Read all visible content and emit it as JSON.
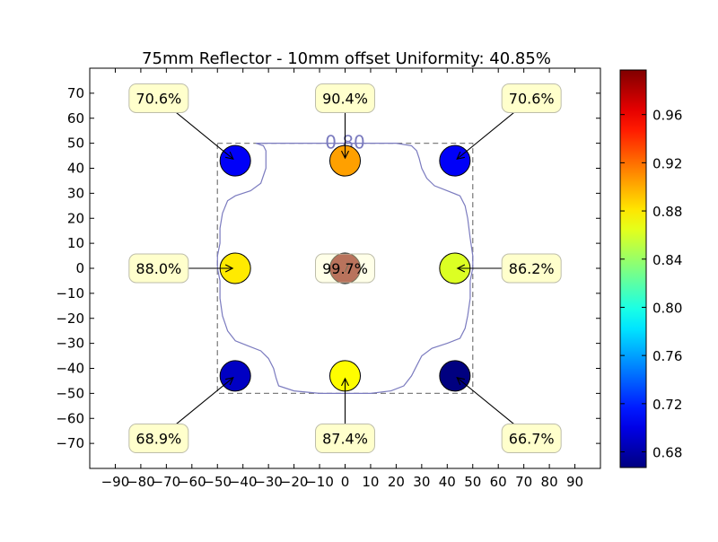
{
  "chart_data": {
    "type": "scatter",
    "title": "75mm Reflector - 10mm offset Uniformity: 40.85%",
    "xlabel": "",
    "ylabel": "",
    "xlim": [
      -100,
      100
    ],
    "ylim": [
      -80,
      80
    ],
    "xticks": [
      -90,
      -80,
      -70,
      -60,
      -50,
      -40,
      -30,
      -20,
      -10,
      0,
      10,
      20,
      30,
      40,
      50,
      60,
      70,
      80,
      90
    ],
    "yticks": [
      -70,
      -60,
      -50,
      -40,
      -30,
      -20,
      -10,
      0,
      10,
      20,
      30,
      40,
      50,
      60,
      70
    ],
    "grid": false,
    "points": [
      {
        "x": -43,
        "y": 43,
        "value": 0.706,
        "label": "70.6%",
        "annotation_offset": [
          -30,
          25
        ]
      },
      {
        "x": 0,
        "y": 43,
        "value": 0.904,
        "label": "90.4%",
        "annotation_offset": [
          0,
          25
        ]
      },
      {
        "x": 43,
        "y": 43,
        "value": 0.706,
        "label": "70.6%",
        "annotation_offset": [
          30,
          25
        ]
      },
      {
        "x": -43,
        "y": 0,
        "value": 0.88,
        "label": "88.0%",
        "annotation_offset": [
          -30,
          0
        ]
      },
      {
        "x": 0,
        "y": 0,
        "value": 0.997,
        "label": "99.7%",
        "annotation_offset": [
          0,
          0
        ]
      },
      {
        "x": 43,
        "y": 0,
        "value": 0.862,
        "label": "86.2%",
        "annotation_offset": [
          30,
          0
        ]
      },
      {
        "x": -43,
        "y": -43,
        "value": 0.689,
        "label": "68.9%",
        "annotation_offset": [
          -30,
          -25
        ]
      },
      {
        "x": 0,
        "y": -43,
        "value": 0.874,
        "label": "87.4%",
        "annotation_offset": [
          0,
          -25
        ]
      },
      {
        "x": 43,
        "y": -43,
        "value": 0.667,
        "label": "66.7%",
        "annotation_offset": [
          30,
          -25
        ]
      }
    ],
    "reference_square": {
      "xmin": -50,
      "xmax": 50,
      "ymin": -50,
      "ymax": 50
    },
    "contour": {
      "level_label": "0.80",
      "color": "#7b7bbf",
      "points": [
        [
          -35,
          50
        ],
        [
          -32,
          49
        ],
        [
          -31,
          47
        ],
        [
          -31,
          44
        ],
        [
          -31,
          40
        ],
        [
          -33,
          34
        ],
        [
          -37,
          31
        ],
        [
          -43,
          29
        ],
        [
          -46,
          27
        ],
        [
          -48,
          22
        ],
        [
          -49,
          16
        ],
        [
          -49,
          10
        ],
        [
          -50,
          5
        ],
        [
          -50,
          0
        ],
        [
          -49,
          -5
        ],
        [
          -49,
          -12
        ],
        [
          -48,
          -19
        ],
        [
          -46,
          -25
        ],
        [
          -43,
          -29
        ],
        [
          -38,
          -31
        ],
        [
          -33,
          -33
        ],
        [
          -30,
          -36
        ],
        [
          -28,
          -40
        ],
        [
          -27,
          -44
        ],
        [
          -26,
          -47
        ],
        [
          -20,
          -49
        ],
        [
          -10,
          -50
        ],
        [
          0,
          -50
        ],
        [
          10,
          -50
        ],
        [
          18,
          -49
        ],
        [
          23,
          -47
        ],
        [
          26,
          -43
        ],
        [
          28,
          -39
        ],
        [
          30,
          -35
        ],
        [
          34,
          -32
        ],
        [
          40,
          -30
        ],
        [
          45,
          -28
        ],
        [
          47,
          -24
        ],
        [
          48,
          -19
        ],
        [
          49,
          -12
        ],
        [
          49,
          -5
        ],
        [
          50,
          0
        ],
        [
          50,
          5
        ],
        [
          49,
          12
        ],
        [
          48,
          20
        ],
        [
          47,
          25
        ],
        [
          45,
          29
        ],
        [
          40,
          31
        ],
        [
          35,
          33
        ],
        [
          32,
          36
        ],
        [
          30,
          40
        ],
        [
          29,
          44
        ],
        [
          28,
          47
        ],
        [
          26,
          49
        ],
        [
          20,
          50
        ],
        [
          10,
          50
        ],
        [
          0,
          50
        ],
        [
          -10,
          50
        ],
        [
          -20,
          50
        ],
        [
          -30,
          50
        ],
        [
          -35,
          50
        ]
      ]
    },
    "colorbar": {
      "min": 0.667,
      "max": 0.997,
      "ticks": [
        0.68,
        0.72,
        0.76,
        0.8,
        0.84,
        0.88,
        0.92,
        0.96
      ],
      "tick_labels": [
        "0.68",
        "0.72",
        "0.76",
        "0.80",
        "0.84",
        "0.88",
        "0.92",
        "0.96"
      ],
      "colormap": "jet"
    },
    "annotation_box_color": "#ffffcc",
    "annotation_edge_color": "#bdbdaa",
    "marker_edge_color": "#000000"
  }
}
